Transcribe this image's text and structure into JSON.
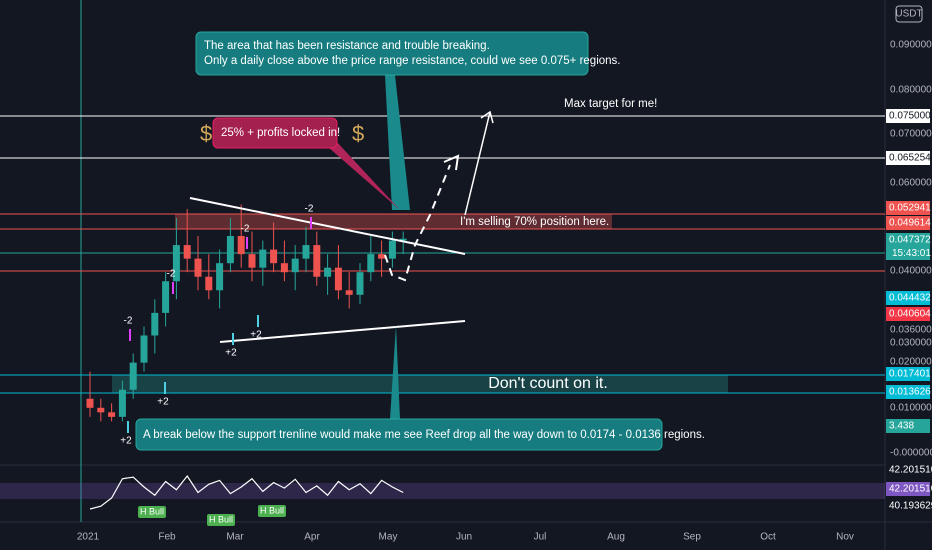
{
  "header": {
    "currency": "USDT",
    "countdown": "15:43:01"
  },
  "price_axis_labels": [
    "0.090000",
    "0.080000",
    "0.070000",
    "0.060000",
    "0.040000",
    "0.036000",
    "0.030000",
    "0.020000",
    "0.010000",
    "-0.000000"
  ],
  "price_tags": [
    {
      "label": "0.075000",
      "color": "#ffffff"
    },
    {
      "label": "0.065254",
      "color": "#ffffff"
    },
    {
      "label": "0.052941",
      "color": "#ef5350"
    },
    {
      "label": "0.049614",
      "color": "#ef5350"
    },
    {
      "label": "0.047372",
      "color": "#26a69a"
    },
    {
      "label": "0.044432",
      "color": "#00bcd4"
    },
    {
      "label": "0.040604",
      "color": "#f23645"
    },
    {
      "label": "0.017401",
      "color": "#00bcd4"
    },
    {
      "label": "0.013626",
      "color": "#00bcd4"
    },
    {
      "label": "3.438",
      "color": "#26a69a"
    }
  ],
  "time_axis": [
    "2021",
    "Feb",
    "Mar",
    "Apr",
    "May",
    "Jun",
    "Jul",
    "Aug",
    "Sep",
    "Oct",
    "Nov"
  ],
  "annotations": {
    "resistance_note": [
      "The area that has been resistance and trouble breaking.",
      "Only a daily close above the price range resistance, could we see 0.075+ regions."
    ],
    "profit_note": "25% + profits locked in!",
    "dollar": "$",
    "selling_note": "I'm selling 70% position here.",
    "target_note": "Max target for me!",
    "support_note": "A break below the support trenline would make me see Reef drop all the way down to 0.0174 - 0.0136 regions.",
    "zone_note": "Don't count on it."
  },
  "signals": [
    "-2",
    "-2",
    "-2",
    "-2",
    "+2",
    "+2",
    "+2",
    "+2"
  ],
  "rsi_signals": [
    "H Bull",
    "H Bull",
    "H Bull"
  ],
  "rsi_tags": [
    "42.201510",
    "42.201510",
    "40.193629"
  ],
  "candles": [
    [
      0.012,
      0.018,
      0.008,
      0.01
    ],
    [
      0.01,
      0.012,
      0.007,
      0.009
    ],
    [
      0.009,
      0.011,
      0.007,
      0.008
    ],
    [
      0.008,
      0.016,
      0.007,
      0.014
    ],
    [
      0.014,
      0.022,
      0.012,
      0.02
    ],
    [
      0.02,
      0.028,
      0.018,
      0.026
    ],
    [
      0.026,
      0.034,
      0.022,
      0.031
    ],
    [
      0.031,
      0.04,
      0.028,
      0.038
    ],
    [
      0.038,
      0.052,
      0.034,
      0.046
    ],
    [
      0.046,
      0.054,
      0.04,
      0.043
    ],
    [
      0.043,
      0.048,
      0.036,
      0.039
    ],
    [
      0.039,
      0.044,
      0.034,
      0.036
    ],
    [
      0.036,
      0.045,
      0.032,
      0.042
    ],
    [
      0.042,
      0.052,
      0.04,
      0.048
    ],
    [
      0.048,
      0.055,
      0.041,
      0.044
    ],
    [
      0.044,
      0.049,
      0.038,
      0.041
    ],
    [
      0.041,
      0.047,
      0.037,
      0.045
    ],
    [
      0.045,
      0.051,
      0.04,
      0.042
    ],
    [
      0.042,
      0.047,
      0.038,
      0.04
    ],
    [
      0.04,
      0.046,
      0.036,
      0.043
    ],
    [
      0.043,
      0.05,
      0.04,
      0.046
    ],
    [
      0.046,
      0.049,
      0.037,
      0.039
    ],
    [
      0.039,
      0.044,
      0.035,
      0.041
    ],
    [
      0.041,
      0.046,
      0.034,
      0.036
    ],
    [
      0.036,
      0.04,
      0.032,
      0.035
    ],
    [
      0.035,
      0.042,
      0.033,
      0.04
    ],
    [
      0.04,
      0.048,
      0.038,
      0.044
    ],
    [
      0.044,
      0.047,
      0.039,
      0.043
    ],
    [
      0.043,
      0.049,
      0.041,
      0.047
    ],
    [
      0.047,
      0.049,
      0.044,
      0.0474
    ]
  ],
  "rsi": [
    20,
    25,
    40,
    75,
    78,
    60,
    45,
    70,
    55,
    80,
    50,
    65,
    72,
    48,
    60,
    75,
    52,
    68,
    58,
    74,
    50,
    62,
    45,
    70,
    55,
    66,
    48,
    72,
    60,
    50
  ]
}
